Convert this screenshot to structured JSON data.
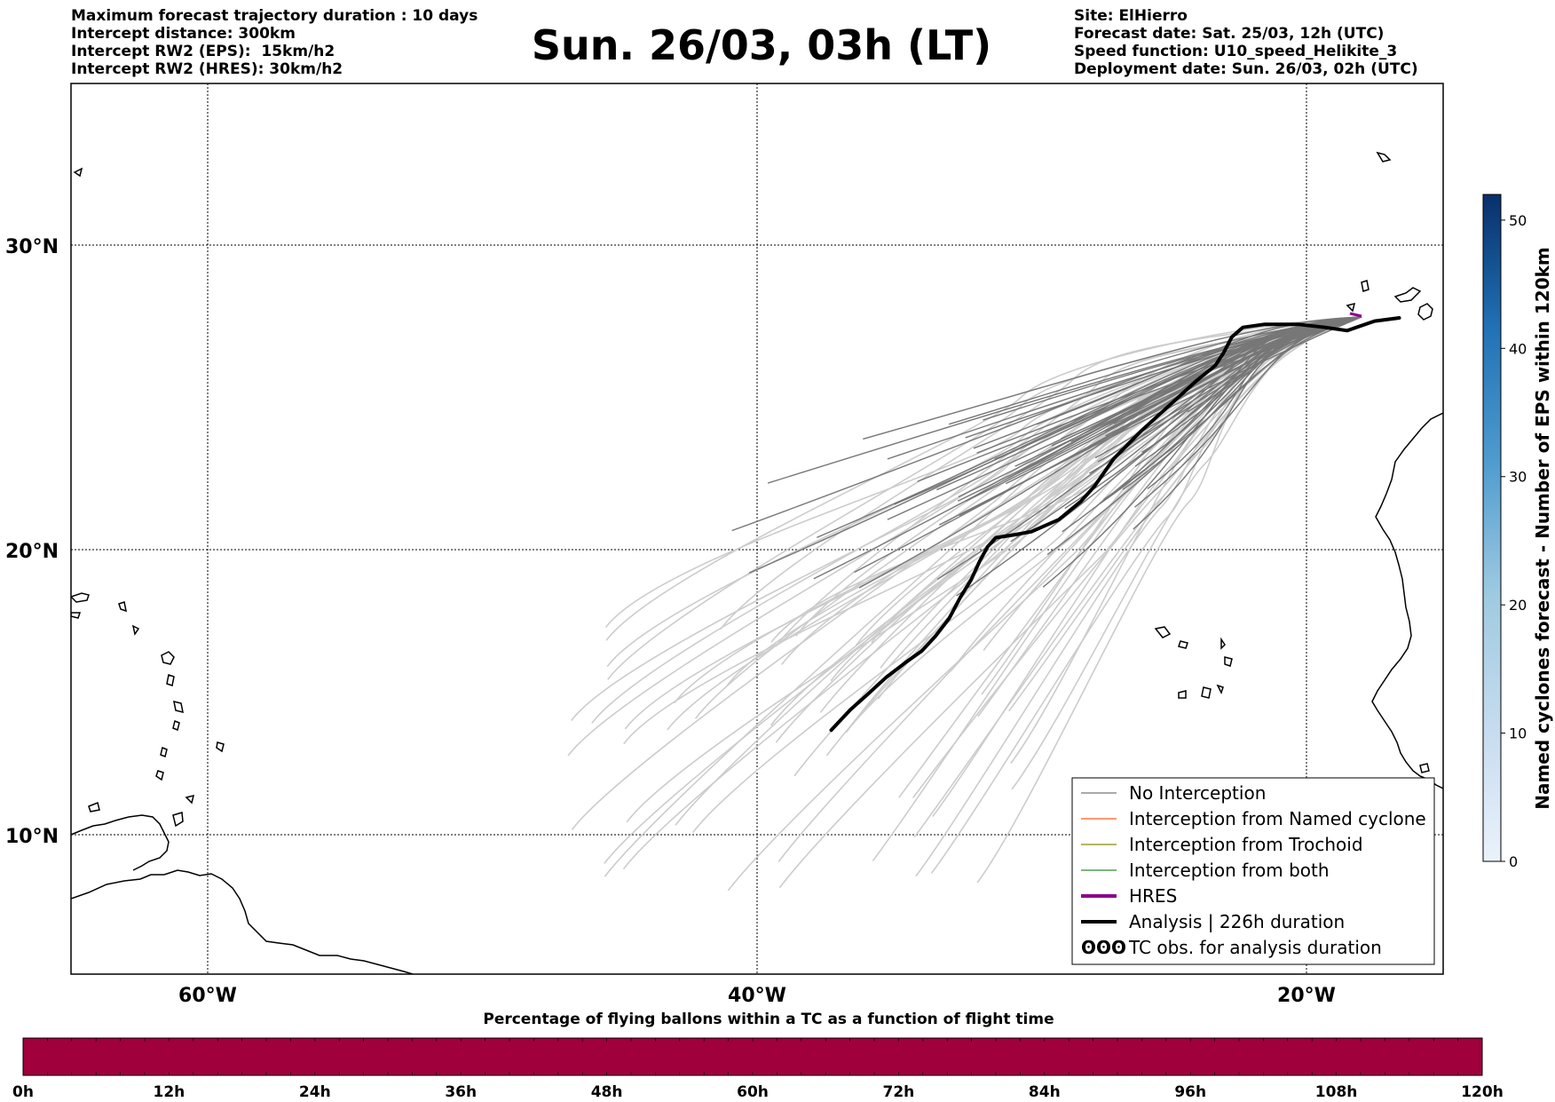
{
  "header_left": [
    "Maximum forecast trajectory duration : 10 days",
    "Intercept distance: 300km",
    "Intercept RW2 (EPS):  15km/h2",
    "Intercept RW2 (HRES): 30km/h2"
  ],
  "header_right": [
    "Site: ElHierro",
    "Forecast date: Sat. 25/03, 12h (UTC)",
    "Speed function: U10_speed_Helikite_3",
    "Deployment date: Sun. 26/03, 02h (UTC)"
  ],
  "title": "Sun. 26/03, 03h (LT)",
  "map": {
    "lat_labels": [
      "30°N",
      "20°N",
      "10°N"
    ],
    "lon_labels": [
      "60°W",
      "40°W",
      "20°W"
    ],
    "lon_range": [
      -65,
      -15
    ],
    "lat_range": [
      5.3,
      34.5
    ],
    "gridlines": true,
    "colors": {
      "no_interception": "#777777",
      "analysis": "#000000",
      "hres": "#8b008b",
      "faded": "#cccccc"
    }
  },
  "legend": {
    "placement": "bottom-right",
    "items": [
      {
        "label": "No Interception",
        "color": "#777777"
      },
      {
        "label": "Interception from Named cyclone",
        "color": "#ff5a1f"
      },
      {
        "label": "Interception from Trochoid",
        "color": "#8a8a00"
      },
      {
        "label": "Interception from both",
        "color": "#2e8b2e"
      },
      {
        "label": "HRES",
        "color": "#8b008b"
      },
      {
        "label": "Analysis | 226h duration",
        "color": "#000000"
      },
      {
        "label": "TC obs. for analysis duration",
        "icon": "cyclone-symbols-icon"
      }
    ]
  },
  "colorbar": {
    "label": "Named cyclones forecast - Number of EPS within 120km",
    "ticks": [
      "0",
      "10",
      "20",
      "30",
      "40",
      "50"
    ],
    "range": [
      0,
      52
    ]
  },
  "time_bar": {
    "title": "Percentage of flying ballons within a TC as a function of flight time",
    "ticks": [
      "0h",
      "12h",
      "24h",
      "36h",
      "48h",
      "60h",
      "72h",
      "84h",
      "96h",
      "108h",
      "120h"
    ],
    "fill_color": "#a0003c"
  },
  "analysis_track": [
    [
      -16.6,
      27.4
    ],
    [
      -17.5,
      27.3
    ],
    [
      -18.5,
      27.0
    ],
    [
      -19.3,
      27.1
    ],
    [
      -20.3,
      27.2
    ],
    [
      -21.5,
      27.2
    ],
    [
      -22.3,
      27.1
    ],
    [
      -22.7,
      26.8
    ],
    [
      -23.0,
      26.3
    ],
    [
      -23.3,
      25.9
    ],
    [
      -24.0,
      25.4
    ],
    [
      -25.0,
      24.6
    ],
    [
      -26.0,
      23.8
    ],
    [
      -27.0,
      22.9
    ],
    [
      -27.7,
      22.0
    ],
    [
      -28.2,
      21.5
    ],
    [
      -29.0,
      20.9
    ],
    [
      -30.0,
      20.5
    ],
    [
      -30.6,
      20.4
    ],
    [
      -31.3,
      20.3
    ],
    [
      -31.6,
      20.0
    ],
    [
      -31.9,
      19.5
    ],
    [
      -32.2,
      18.9
    ],
    [
      -32.6,
      18.3
    ],
    [
      -33.0,
      17.6
    ],
    [
      -33.5,
      17.0
    ],
    [
      -34.0,
      16.5
    ],
    [
      -34.6,
      16.1
    ],
    [
      -35.3,
      15.6
    ],
    [
      -36.0,
      15.0
    ],
    [
      -36.6,
      14.5
    ],
    [
      -37.3,
      13.8
    ]
  ]
}
